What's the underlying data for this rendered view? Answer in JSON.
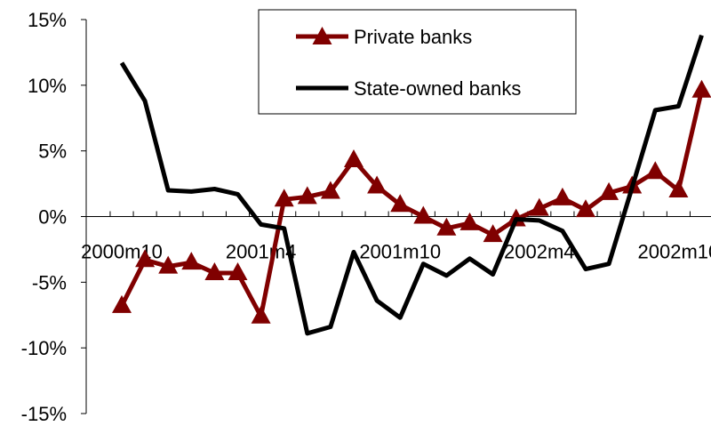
{
  "chart_data": {
    "type": "line",
    "title": "",
    "xlabel": "",
    "ylabel": "",
    "ylim": [
      -15,
      15
    ],
    "y_ticks": [
      15,
      10,
      5,
      0,
      -5,
      -10,
      -15
    ],
    "y_tick_labels": [
      "15%",
      "10%",
      "5%",
      "0%",
      "-5%",
      "-10%",
      "-15%"
    ],
    "x": [
      "2000m10",
      "2000m11",
      "2000m12",
      "2001m1",
      "2001m2",
      "2001m3",
      "2001m4",
      "2001m5",
      "2001m6",
      "2001m7",
      "2001m8",
      "2001m9",
      "2001m10",
      "2001m11",
      "2001m12",
      "2002m1",
      "2002m2",
      "2002m3",
      "2002m4",
      "2002m5",
      "2002m6",
      "2002m7",
      "2002m8",
      "2002m9",
      "2002m10",
      "2002m11"
    ],
    "x_tick_labels": [
      "2000m10",
      "2001m4",
      "2001m10",
      "2002m4",
      "2002m10"
    ],
    "series": [
      {
        "name": "Private banks",
        "color": "#800000",
        "marker": "triangle",
        "values": [
          -6.8,
          -3.3,
          -3.8,
          -3.5,
          -4.3,
          -4.3,
          -7.6,
          1.3,
          1.5,
          1.9,
          4.3,
          2.3,
          0.9,
          0.0,
          -0.9,
          -0.5,
          -1.4,
          -0.2,
          0.6,
          1.4,
          0.5,
          1.8,
          2.3,
          3.4,
          2.0,
          9.6
        ]
      },
      {
        "name": "State-owned banks",
        "color": "#000000",
        "marker": "none",
        "values": [
          11.7,
          8.8,
          2.0,
          1.9,
          2.1,
          1.7,
          -0.6,
          -0.9,
          -8.9,
          -8.4,
          -2.7,
          -6.4,
          -7.7,
          -3.6,
          -4.5,
          -3.2,
          -4.4,
          -0.2,
          -0.3,
          -1.1,
          -4.0,
          -3.6,
          2.2,
          8.1,
          8.4,
          13.8
        ]
      }
    ],
    "legend": {
      "position": "top-right",
      "boxed": true
    },
    "grid": false
  }
}
